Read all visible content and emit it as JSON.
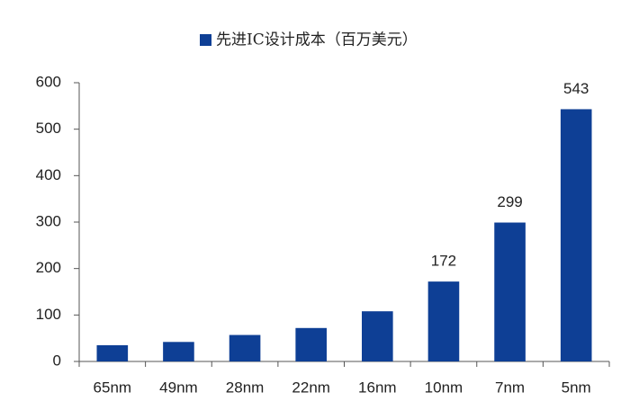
{
  "chart_data": {
    "type": "bar",
    "legend": "先进IC设计成本（百万美元）",
    "categories": [
      "65nm",
      "49nm",
      "28nm",
      "22nm",
      "16nm",
      "10nm",
      "7nm",
      "5nm"
    ],
    "values": [
      35,
      42,
      57,
      72,
      108,
      172,
      299,
      543
    ],
    "value_labels": [
      null,
      null,
      null,
      null,
      null,
      "172",
      "299",
      "543"
    ],
    "color": "#0e3f95",
    "ylim": [
      0,
      600
    ],
    "yticks": [
      0,
      100,
      200,
      300,
      400,
      500,
      600
    ],
    "grid": false
  }
}
